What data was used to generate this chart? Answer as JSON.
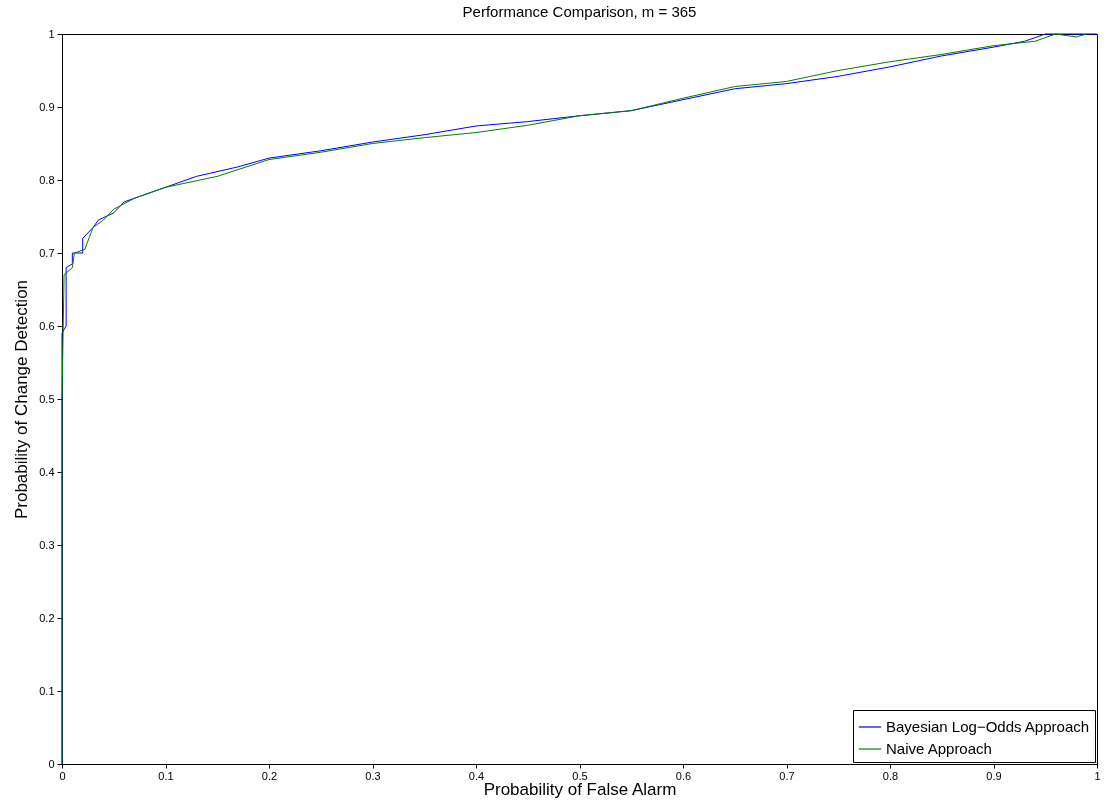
{
  "chart_data": {
    "type": "line",
    "title": "Performance Comparison, m = 365",
    "xlabel": "Probability of False Alarm",
    "ylabel": "Probability of Change Detection",
    "xlim": [
      0,
      1
    ],
    "ylim": [
      0,
      1
    ],
    "xticks": [
      0,
      0.1,
      0.2,
      0.3,
      0.4,
      0.5,
      0.6,
      0.7,
      0.8,
      0.9,
      1
    ],
    "yticks": [
      0,
      0.1,
      0.2,
      0.3,
      0.4,
      0.5,
      0.6,
      0.7,
      0.8,
      0.9,
      1
    ],
    "grid": false,
    "legend": "bottom right",
    "marker": "none",
    "line_style": "solid",
    "series": [
      {
        "name": "Bayesian Log−Odds Approach",
        "color": "#0000ff",
        "x": [
          0,
          0,
          0.004,
          0.004,
          0.01,
          0.01,
          0.02,
          0.02,
          0.03,
          0.035,
          0.05,
          0.06,
          0.08,
          0.1,
          0.13,
          0.17,
          0.2,
          0.25,
          0.3,
          0.35,
          0.4,
          0.45,
          0.5,
          0.55,
          0.6,
          0.65,
          0.7,
          0.75,
          0.8,
          0.85,
          0.9,
          0.93,
          0.95,
          1
        ],
        "values": [
          0,
          0.59,
          0.6,
          0.68,
          0.685,
          0.7,
          0.7,
          0.72,
          0.735,
          0.745,
          0.755,
          0.77,
          0.78,
          0.79,
          0.805,
          0.818,
          0.83,
          0.84,
          0.852,
          0.862,
          0.874,
          0.88,
          0.888,
          0.895,
          0.91,
          0.925,
          0.932,
          0.942,
          0.955,
          0.97,
          0.982,
          0.99,
          1,
          1
        ]
      },
      {
        "name": "Naive Approach",
        "color": "#008000",
        "x": [
          0,
          0,
          0.002,
          0.01,
          0.012,
          0.022,
          0.03,
          0.04,
          0.05,
          0.07,
          0.1,
          0.15,
          0.2,
          0.25,
          0.3,
          0.35,
          0.4,
          0.45,
          0.5,
          0.55,
          0.6,
          0.65,
          0.7,
          0.75,
          0.8,
          0.85,
          0.9,
          0.94,
          0.96,
          0.98,
          0.99
        ],
        "values": [
          0,
          0.5,
          0.67,
          0.68,
          0.7,
          0.705,
          0.735,
          0.745,
          0.76,
          0.775,
          0.79,
          0.805,
          0.828,
          0.838,
          0.85,
          0.858,
          0.865,
          0.875,
          0.888,
          0.895,
          0.912,
          0.928,
          0.935,
          0.95,
          0.962,
          0.972,
          0.984,
          0.99,
          1,
          0.996,
          1
        ]
      }
    ]
  }
}
